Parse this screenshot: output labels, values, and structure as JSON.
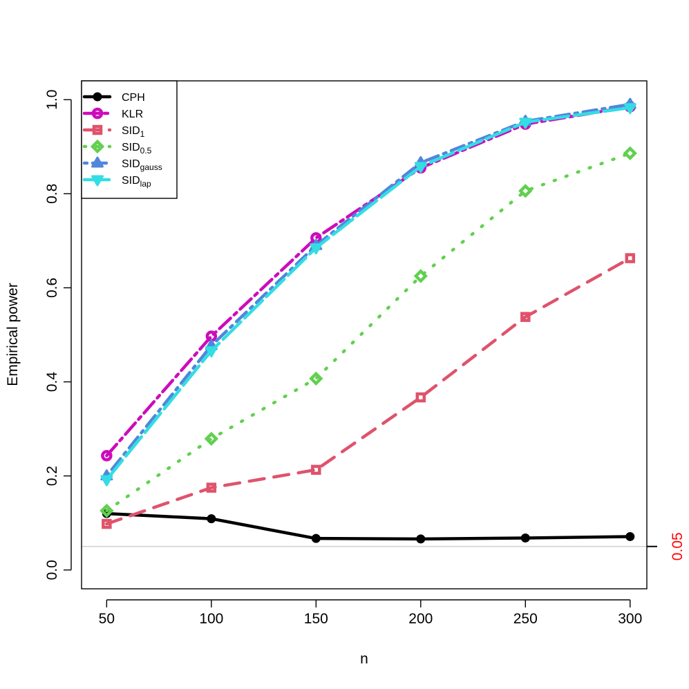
{
  "chart_data": {
    "type": "line",
    "xlabel": "n",
    "ylabel": "Empirical power",
    "x": [
      50,
      100,
      150,
      200,
      250,
      300
    ],
    "xlim": [
      38,
      308
    ],
    "ylim": [
      -0.04,
      1.04
    ],
    "x_ticks": [
      "50",
      "100",
      "150",
      "200",
      "250",
      "300"
    ],
    "y_ticks": [
      "0.0",
      "0.2",
      "0.4",
      "0.6",
      "0.8",
      "1.0"
    ],
    "grid": false,
    "legend_position": "top-left",
    "reference_line": {
      "y": 0.05,
      "label": "0.05",
      "color": "#d0d0d0",
      "label_color": "#ff0000"
    },
    "series": [
      {
        "name": "CPH",
        "sub": "",
        "color": "#000000",
        "dash": "",
        "marker": "circle",
        "values": [
          0.12,
          0.109,
          0.067,
          0.066,
          0.068,
          0.071
        ]
      },
      {
        "name": "KLR",
        "sub": "",
        "color": "#cd0bbc",
        "dash": "22 7 5 7",
        "marker": "open-circle",
        "values": [
          0.243,
          0.497,
          0.706,
          0.855,
          0.948,
          0.985
        ]
      },
      {
        "name": "SID",
        "sub": "1",
        "color": "#df536b",
        "dash": "22 14",
        "marker": "open-square",
        "values": [
          0.098,
          0.175,
          0.213,
          0.367,
          0.538,
          0.663
        ]
      },
      {
        "name": "SID",
        "sub": "0.5",
        "color": "#61d04f",
        "dash": "2 16",
        "marker": "open-diamond",
        "values": [
          0.126,
          0.279,
          0.407,
          0.625,
          0.806,
          0.886
        ]
      },
      {
        "name": "SID",
        "sub": "gauss",
        "color": "#5087dc",
        "dash": "4 8 20 8",
        "marker": "triangle-up",
        "values": [
          0.2,
          0.477,
          0.69,
          0.866,
          0.954,
          0.99
        ]
      },
      {
        "name": "SID",
        "sub": "lap",
        "color": "#33dde4",
        "dash": "36 8",
        "marker": "triangle-down",
        "values": [
          0.192,
          0.466,
          0.685,
          0.858,
          0.952,
          0.983
        ]
      }
    ]
  }
}
